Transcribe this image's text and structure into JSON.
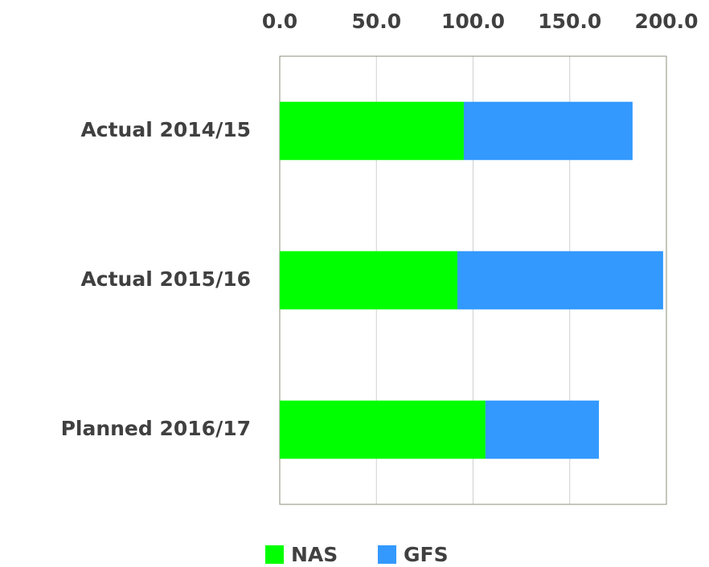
{
  "chart_data": {
    "type": "hbar_stacked",
    "categories": [
      "Actual 2014/15",
      "Actual 2015/16",
      "Planned 2016/17"
    ],
    "series": [
      {
        "name": "NAS",
        "color": "#00ff00",
        "values": [
          95.2,
          91.9,
          106.4
        ]
      },
      {
        "name": "GFS",
        "color": "#3399ff",
        "values": [
          87.3,
          106.4,
          58.7
        ]
      }
    ],
    "xlim": [
      0,
      200
    ],
    "xticks": [
      {
        "value": 0,
        "label": "0.0"
      },
      {
        "value": 50,
        "label": "50.0"
      },
      {
        "value": 100,
        "label": "100.0"
      },
      {
        "value": 150,
        "label": "150.0"
      },
      {
        "value": 200,
        "label": "200.0"
      }
    ],
    "grid": true,
    "legend": "bottom"
  }
}
